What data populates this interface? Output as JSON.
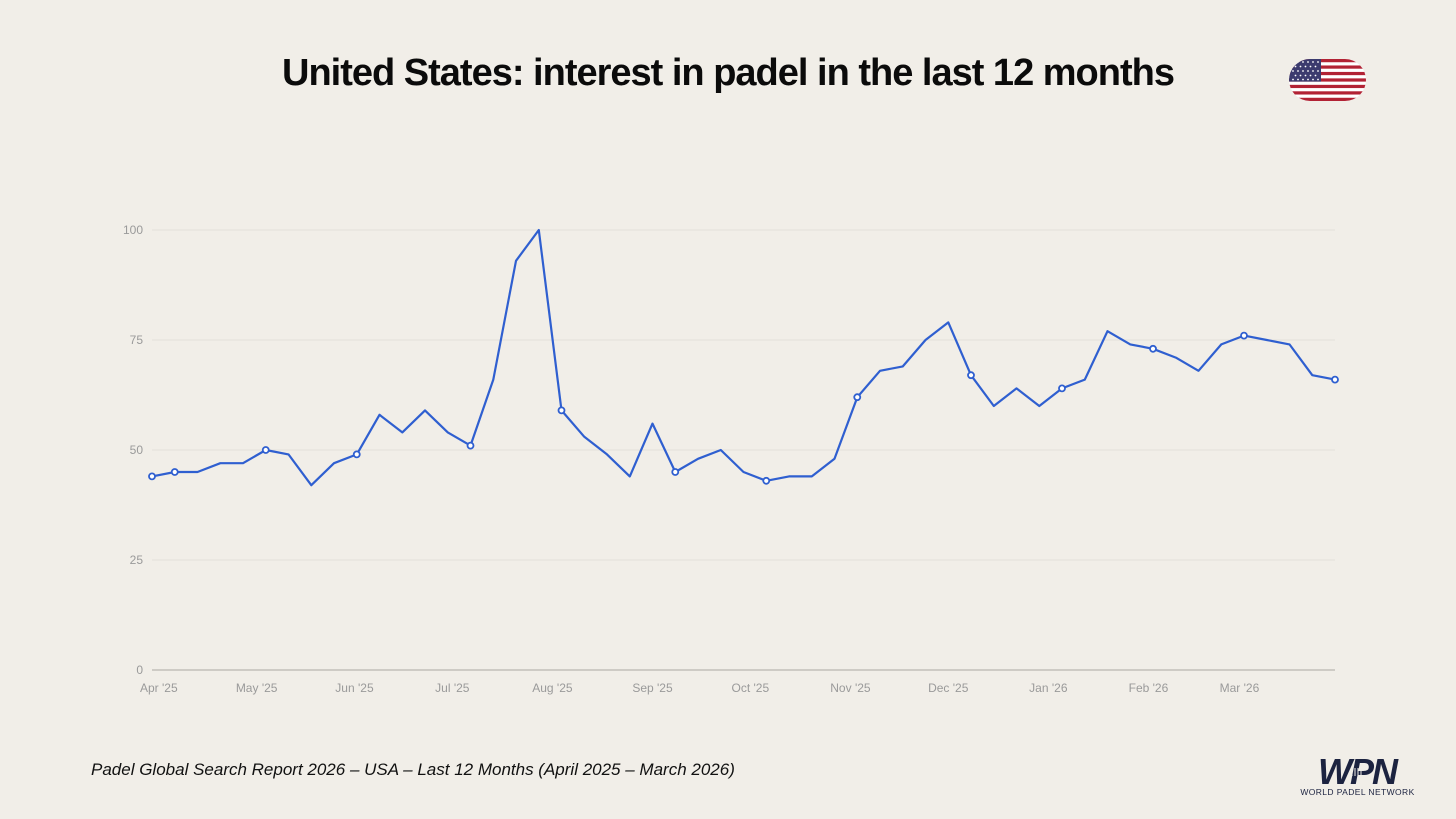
{
  "header": {
    "title": "United States: interest in padel in the last 12 months",
    "flag_icon": "us-flag-icon"
  },
  "footer": {
    "source": "Padel Global Search Report 2026 – USA – Last 12 Months (April 2025 – March 2026)"
  },
  "logo": {
    "mark": "WPN",
    "tagline": "WORLD PADEL NETWORK"
  },
  "colors": {
    "background": "#f1eee8",
    "line": "#2f5fd0",
    "grid": "#e3e0da",
    "axis_text": "#9a9a9a",
    "logo": "#1c2340"
  },
  "chart_data": {
    "type": "line",
    "title": "United States: interest in padel in the last 12 months",
    "xlabel": "",
    "ylabel": "",
    "ylim": [
      0,
      100
    ],
    "yticks": [
      0,
      25,
      50,
      75,
      100
    ],
    "grid": true,
    "x_tick_labels": [
      "Apr '25",
      "May '25",
      "Jun '25",
      "Jul '25",
      "Aug '25",
      "Sep '25",
      "Oct '25",
      "Nov '25",
      "Dec '25",
      "Jan '26",
      "Feb '26",
      "Mar '26"
    ],
    "x_tick_weeks": [
      0.3,
      4.6,
      8.9,
      13.2,
      17.6,
      22.0,
      26.3,
      30.7,
      35.0,
      39.4,
      43.8,
      47.8
    ],
    "series": [
      {
        "values": [
          44,
          45,
          45,
          47,
          47,
          50,
          49,
          42,
          47,
          49,
          58,
          54,
          59,
          54,
          51,
          66,
          93,
          100,
          59,
          53,
          49,
          44,
          56,
          45,
          48,
          50,
          45,
          43,
          44,
          44,
          48,
          62,
          68,
          69,
          75,
          79,
          67,
          60,
          64,
          60,
          64,
          66,
          77,
          74,
          73,
          71,
          68,
          74,
          76,
          75,
          74,
          67,
          66
        ],
        "markers_at": [
          0,
          1,
          5,
          9,
          14,
          18,
          23,
          27,
          31,
          36,
          40,
          44,
          48,
          52
        ]
      }
    ]
  }
}
